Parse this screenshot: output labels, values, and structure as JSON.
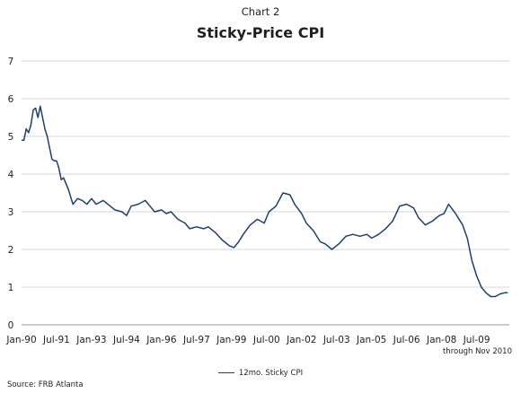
{
  "chart_data": {
    "type": "line",
    "label": "Chart 2",
    "title": "Sticky-Price CPI",
    "xlabel": "",
    "ylabel": "",
    "ylim": [
      0,
      7
    ],
    "yticks": [
      0,
      1,
      2,
      3,
      4,
      5,
      6,
      7
    ],
    "xlim": [
      1990.0,
      2010.9
    ],
    "x_tick_labels": [
      "Jan-90",
      "Jul-91",
      "Jan-93",
      "Jul-94",
      "Jan-96",
      "Jul-97",
      "Jan-99",
      "Jul-00",
      "Jan-02",
      "Jul-03",
      "Jan-05",
      "Jul-06",
      "Jan-08",
      "Jul-09"
    ],
    "x_tick_positions": [
      1990.0,
      1991.5,
      1993.0,
      1994.5,
      1996.0,
      1997.5,
      1999.0,
      2000.5,
      2002.0,
      2003.5,
      2005.0,
      2006.5,
      2008.0,
      2009.5
    ],
    "grid": "horizontal",
    "legend_position": "bottom",
    "note": "through Nov 2010",
    "source": "Source: FRB Atlanta",
    "line_color": "#1f3f6e",
    "series": [
      {
        "name": "12mo. Sticky CPI",
        "x": [
          1990.0,
          1990.1,
          1990.2,
          1990.3,
          1990.4,
          1990.5,
          1990.6,
          1990.7,
          1990.8,
          1991.0,
          1991.1,
          1991.2,
          1991.3,
          1991.4,
          1991.5,
          1991.6,
          1991.7,
          1991.8,
          1992.0,
          1992.2,
          1992.4,
          1992.6,
          1992.8,
          1993.0,
          1993.2,
          1993.5,
          1993.8,
          1994.0,
          1994.3,
          1994.5,
          1994.7,
          1995.0,
          1995.3,
          1995.5,
          1995.7,
          1996.0,
          1996.2,
          1996.4,
          1996.7,
          1997.0,
          1997.2,
          1997.5,
          1997.8,
          1998.0,
          1998.3,
          1998.6,
          1998.9,
          1999.1,
          1999.3,
          1999.5,
          1999.8,
          2000.1,
          2000.4,
          2000.6,
          2000.9,
          2001.2,
          2001.5,
          2001.7,
          2002.0,
          2002.2,
          2002.5,
          2002.8,
          2003.0,
          2003.3,
          2003.6,
          2003.9,
          2004.2,
          2004.5,
          2004.8,
          2005.0,
          2005.3,
          2005.6,
          2005.9,
          2006.2,
          2006.5,
          2006.8,
          2007.0,
          2007.3,
          2007.6,
          2007.9,
          2008.1,
          2008.3,
          2008.6,
          2008.9,
          2009.1,
          2009.3,
          2009.5,
          2009.7,
          2009.9,
          2010.1,
          2010.3,
          2010.5,
          2010.7,
          2010.83
        ],
        "values": [
          4.9,
          4.9,
          5.2,
          5.1,
          5.3,
          5.7,
          5.75,
          5.5,
          5.8,
          5.2,
          5.0,
          4.7,
          4.4,
          4.35,
          4.35,
          4.15,
          3.85,
          3.9,
          3.6,
          3.2,
          3.35,
          3.3,
          3.2,
          3.35,
          3.2,
          3.3,
          3.15,
          3.05,
          3.0,
          2.9,
          3.15,
          3.2,
          3.3,
          3.15,
          3.0,
          3.05,
          2.95,
          3.0,
          2.8,
          2.7,
          2.55,
          2.6,
          2.55,
          2.6,
          2.45,
          2.25,
          2.1,
          2.05,
          2.2,
          2.4,
          2.65,
          2.8,
          2.7,
          3.0,
          3.15,
          3.5,
          3.45,
          3.2,
          2.95,
          2.7,
          2.5,
          2.2,
          2.15,
          2.0,
          2.15,
          2.35,
          2.4,
          2.35,
          2.4,
          2.3,
          2.4,
          2.55,
          2.75,
          3.15,
          3.2,
          3.1,
          2.85,
          2.65,
          2.75,
          2.9,
          2.95,
          3.2,
          2.95,
          2.65,
          2.3,
          1.7,
          1.3,
          1.0,
          0.85,
          0.75,
          0.75,
          0.82,
          0.85,
          0.85
        ]
      }
    ]
  }
}
